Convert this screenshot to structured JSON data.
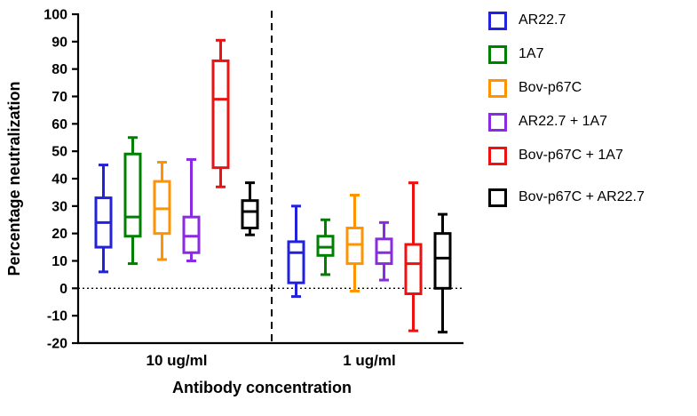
{
  "chart_data": {
    "type": "boxplot",
    "title": "",
    "xlabel": "Antibody concentration",
    "ylabel": "Percentage neutralization",
    "ylim": [
      -20,
      100
    ],
    "ytick_step": 10,
    "grid": false,
    "legend_position": "right",
    "zero_line": {
      "y": 0,
      "style": "dotted"
    },
    "group_separator": {
      "style": "dashed",
      "between": [
        "10 ug/ml",
        "1 ug/ml"
      ]
    },
    "groups": [
      "10 ug/ml",
      "1 ug/ml"
    ],
    "series": [
      {
        "name": "AR22.7",
        "color": "#2222DD",
        "boxes": [
          {
            "low": 6,
            "q1": 15,
            "median": 24,
            "q3": 33,
            "high": 45
          },
          {
            "low": -3,
            "q1": 2,
            "median": 13,
            "q3": 17,
            "high": 30
          }
        ]
      },
      {
        "name": "1A7",
        "color": "#008000",
        "boxes": [
          {
            "low": 9,
            "q1": 19,
            "median": 26,
            "q3": 49,
            "high": 55
          },
          {
            "low": 5,
            "q1": 12,
            "median": 15,
            "q3": 19,
            "high": 25
          }
        ]
      },
      {
        "name": "Bov-p67C",
        "color": "#FF9300",
        "boxes": [
          {
            "low": 10.5,
            "q1": 20,
            "median": 29,
            "q3": 39,
            "high": 46
          },
          {
            "low": -1,
            "q1": 9,
            "median": 16,
            "q3": 22,
            "high": 34
          }
        ]
      },
      {
        "name": "AR22.7 + 1A7",
        "color": "#8A2BE2",
        "boxes": [
          {
            "low": 10,
            "q1": 13,
            "median": 19,
            "q3": 26,
            "high": 47
          },
          {
            "low": 3,
            "q1": 9,
            "median": 13,
            "q3": 18,
            "high": 24
          }
        ]
      },
      {
        "name": "Bov-p67C + 1A7",
        "color": "#EE1111",
        "boxes": [
          {
            "low": 37,
            "q1": 44,
            "median": 69,
            "q3": 83,
            "high": 90.5
          },
          {
            "low": -15.5,
            "q1": -2,
            "median": 9,
            "q3": 16,
            "high": 38.5
          }
        ]
      },
      {
        "name": "Bov-p67C + AR22.7",
        "color": "#000000",
        "boxes": [
          {
            "low": 19.5,
            "q1": 22,
            "median": 28,
            "q3": 32,
            "high": 38.5
          },
          {
            "low": -16,
            "q1": 0,
            "median": 11,
            "q3": 20,
            "high": 27
          }
        ]
      }
    ]
  }
}
